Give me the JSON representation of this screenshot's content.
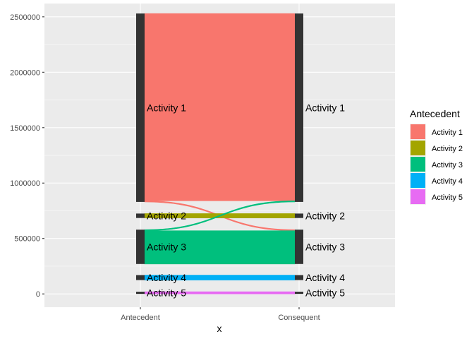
{
  "chart_data": {
    "type": "alluvial",
    "x": [
      "Antecedent",
      "Consequent"
    ],
    "xlabel": "x",
    "ylabel": "",
    "ylim": [
      -120000,
      2620000
    ],
    "yticks": [
      0,
      500000,
      1000000,
      1500000,
      2000000,
      2500000
    ],
    "ytick_labels": [
      "0",
      "500000",
      "1000000",
      "1500000",
      "2000000",
      "2500000"
    ],
    "grid": true,
    "legend": {
      "title": "Antecedent",
      "position": "right",
      "entries": [
        "Activity 1",
        "Activity 2",
        "Activity 3",
        "Activity 4",
        "Activity 5"
      ]
    },
    "colors": {
      "Activity 1": "#F8766D",
      "Activity 2": "#A3A500",
      "Activity 3": "#00BF7D",
      "Activity 4": "#00B0F6",
      "Activity 5": "#E76BF3"
    },
    "strata": [
      {
        "label": "Activity 1",
        "ymin": 830000,
        "ymax": 2530000
      },
      {
        "label": "Activity 2",
        "ymin": 685000,
        "ymax": 725000
      },
      {
        "label": "Activity 3",
        "ymin": 270000,
        "ymax": 580000
      },
      {
        "label": "Activity 4",
        "ymin": 125000,
        "ymax": 170000
      },
      {
        "label": "Activity 5",
        "ymin": 0,
        "ymax": 20000
      }
    ],
    "flows": [
      {
        "from": "Activity 1",
        "to": "Activity 1",
        "value": 1690000
      },
      {
        "from": "Activity 1",
        "to": "Activity 3",
        "value": 10000
      },
      {
        "from": "Activity 2",
        "to": "Activity 2",
        "value": 40000
      },
      {
        "from": "Activity 3",
        "to": "Activity 1",
        "value": 10000
      },
      {
        "from": "Activity 3",
        "to": "Activity 3",
        "value": 300000
      },
      {
        "from": "Activity 4",
        "to": "Activity 4",
        "value": 45000
      },
      {
        "from": "Activity 5",
        "to": "Activity 5",
        "value": 20000
      }
    ]
  }
}
